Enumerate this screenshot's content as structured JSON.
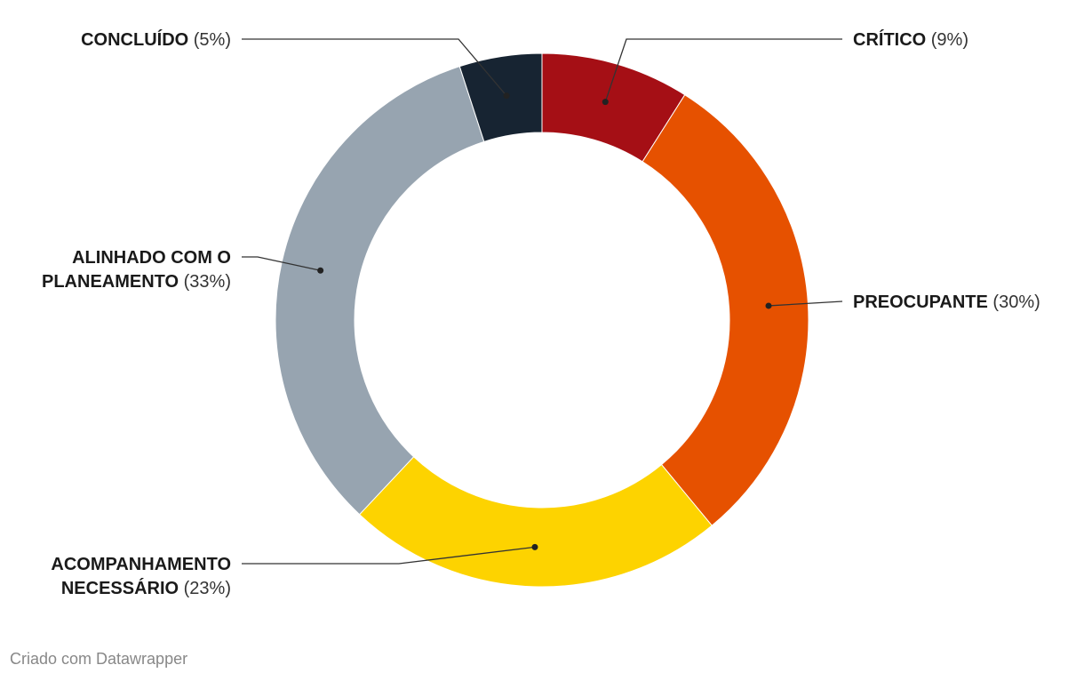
{
  "chart_data": {
    "type": "pie",
    "variant": "donut",
    "slices": [
      {
        "label": "CRÍTICO",
        "pct_text": "(9%)",
        "value": 9,
        "color": "#a50f15"
      },
      {
        "label": "PREOCUPANTE",
        "pct_text": "(30%)",
        "value": 30,
        "color": "#e65100"
      },
      {
        "label": "ACOMPANHAMENTO NECESSÁRIO",
        "label_lines": [
          "ACOMPANHAMENTO",
          "NECESSÁRIO"
        ],
        "pct_text": "(23%)",
        "value": 23,
        "color": "#fdd300"
      },
      {
        "label": "ALINHADO COM O PLANEAMENTO",
        "label_lines": [
          "ALINHADO COM O",
          "PLANEAMENTO"
        ],
        "pct_text": "(33%)",
        "value": 33,
        "color": "#97a4b0"
      },
      {
        "label": "CONCLUÍDO",
        "pct_text": "(5%)",
        "value": 5,
        "color": "#172432"
      }
    ],
    "legend": "none (direct labels with leader lines)"
  },
  "footer": {
    "credit": "Criado com Datawrapper"
  }
}
